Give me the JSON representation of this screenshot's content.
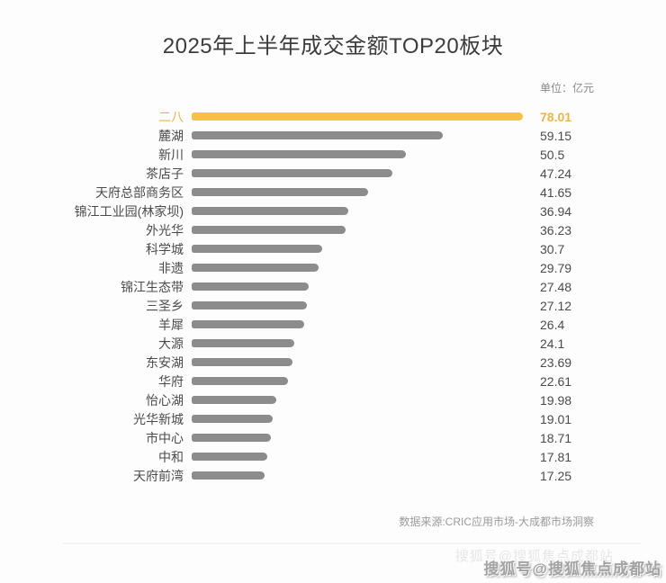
{
  "page": {
    "title": "2025年上半年成交金额TOP20板块",
    "unit_label": "单位：亿元",
    "source": "数据来源:CRIC应用市场-大成都市场洞察",
    "watermark": "搜狐号@搜狐焦点成都站"
  },
  "colors": {
    "accent": "#F5C242",
    "bar_gray": "#8C8C8C",
    "text_dark": "#4B4B4B",
    "text_muted": "#8A8A8A"
  },
  "chart_data": {
    "type": "bar",
    "orientation": "horizontal",
    "title": "2025年上半年成交金额TOP20板块",
    "unit": "亿元",
    "xlabel": "",
    "ylabel": "",
    "xlim": [
      0,
      78.01
    ],
    "grid": false,
    "legend": false,
    "highlight_index": 0,
    "categories": [
      "二八",
      "麓湖",
      "新川",
      "茶店子",
      "天府总部商务区",
      "锦江工业园(林家坝)",
      "外光华",
      "科学城",
      "非遗",
      "锦江生态带",
      "三圣乡",
      "羊犀",
      "大源",
      "东安湖",
      "华府",
      "怡心湖",
      "光华新城",
      "市中心",
      "中和",
      "天府前湾"
    ],
    "values": [
      78.01,
      59.15,
      50.5,
      47.24,
      41.65,
      36.94,
      36.23,
      30.7,
      29.79,
      27.48,
      27.12,
      26.4,
      24.1,
      23.69,
      22.61,
      19.98,
      19.01,
      18.71,
      17.81,
      17.25
    ]
  }
}
